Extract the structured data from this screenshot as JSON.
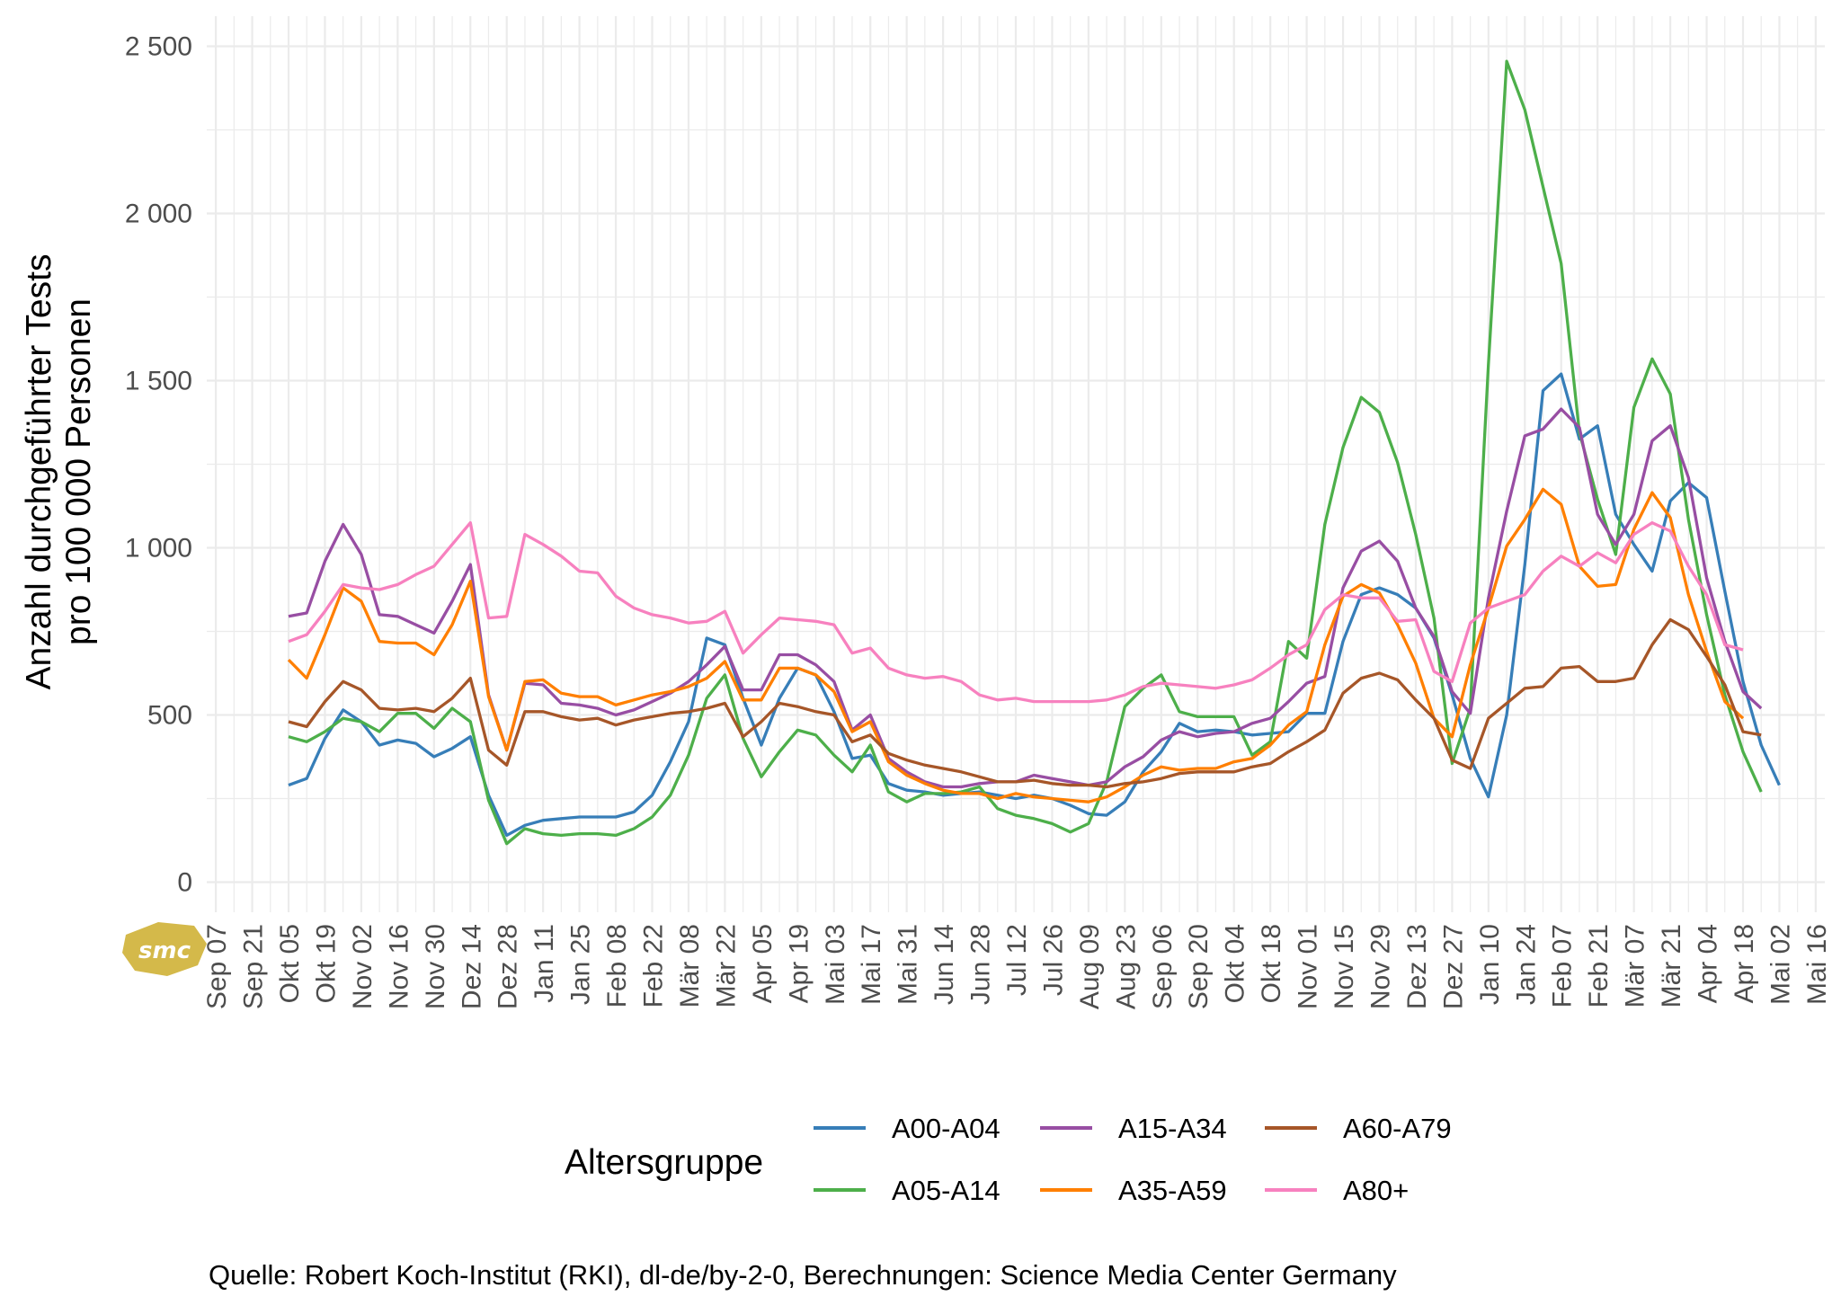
{
  "chart_data": {
    "type": "line",
    "ylabel_lines": [
      "Anzahl durchgeführter Tests",
      "pro 100 000 Personen"
    ],
    "ylim": [
      -90,
      2590
    ],
    "yticks": [
      0,
      500,
      1000,
      1500,
      2000,
      2500
    ],
    "ytick_labels": [
      "0",
      "500",
      "1 000",
      "1 500",
      "2 000",
      "2 500"
    ],
    "x_tick_labels": [
      "Sep 07",
      "Sep 21",
      "Okt 05",
      "Okt 19",
      "Nov 02",
      "Nov 16",
      "Nov 30",
      "Dez 14",
      "Dez 28",
      "Jan 11",
      "Jan 25",
      "Feb 08",
      "Feb 22",
      "Mär 08",
      "Mär 22",
      "Apr 05",
      "Apr 19",
      "Mai 03",
      "Mai 17",
      "Mai 31",
      "Jun 14",
      "Jun 28",
      "Jul 12",
      "Jul 26",
      "Aug 09",
      "Aug 23",
      "Sep 06",
      "Sep 20",
      "Okt 04",
      "Okt 18",
      "Nov 01",
      "Nov 15",
      "Nov 29",
      "Dez 13",
      "Dez 27",
      "Jan 10",
      "Jan 24",
      "Feb 07",
      "Feb 21",
      "Mär 07",
      "Mär 21",
      "Apr 04",
      "Apr 18",
      "Mai 02",
      "Mai 16"
    ],
    "x_range_weeks": [
      -0.5,
      88.5
    ],
    "x_start_week": 4,
    "legend_title": "Altersgruppe",
    "legend_position": "bottom",
    "grid": true,
    "series": [
      {
        "name": "A00-A04",
        "color": "#377eb8",
        "values": [
          290,
          310,
          430,
          515,
          480,
          410,
          425,
          415,
          375,
          400,
          435,
          260,
          140,
          170,
          185,
          190,
          195,
          195,
          195,
          210,
          260,
          360,
          480,
          730,
          710,
          550,
          410,
          550,
          640,
          620,
          510,
          370,
          380,
          295,
          275,
          270,
          260,
          265,
          270,
          260,
          250,
          260,
          250,
          230,
          205,
          200,
          240,
          330,
          390,
          475,
          450,
          455,
          450,
          440,
          445,
          450,
          505,
          505,
          720,
          860,
          880,
          860,
          820,
          730,
          560,
          370,
          255,
          500,
          950,
          1470,
          1520,
          1325,
          1365,
          1100,
          1010,
          930,
          1140,
          1195,
          1150,
          870,
          600,
          410,
          290
        ]
      },
      {
        "name": "A05-A14",
        "color": "#4daf4a",
        "values": [
          435,
          420,
          450,
          490,
          480,
          450,
          505,
          505,
          460,
          520,
          480,
          245,
          115,
          160,
          145,
          140,
          145,
          145,
          140,
          160,
          195,
          260,
          380,
          550,
          620,
          430,
          315,
          390,
          455,
          440,
          380,
          330,
          410,
          270,
          240,
          265,
          265,
          270,
          285,
          220,
          200,
          190,
          175,
          150,
          175,
          300,
          525,
          580,
          620,
          510,
          495,
          495,
          495,
          380,
          420,
          720,
          670,
          1070,
          1300,
          1450,
          1405,
          1255,
          1040,
          790,
          355,
          520,
          1550,
          2455,
          2310,
          2080,
          1850,
          1345,
          1145,
          980,
          1420,
          1565,
          1460,
          1085,
          800,
          560,
          390,
          270
        ]
      },
      {
        "name": "A15-A34",
        "color": "#984ea3",
        "values": [
          795,
          805,
          960,
          1070,
          980,
          800,
          795,
          770,
          745,
          840,
          950,
          560,
          395,
          595,
          590,
          535,
          530,
          520,
          500,
          515,
          540,
          565,
          600,
          650,
          705,
          575,
          575,
          680,
          680,
          650,
          600,
          455,
          500,
          370,
          330,
          300,
          285,
          285,
          295,
          300,
          300,
          320,
          310,
          300,
          290,
          300,
          345,
          375,
          425,
          450,
          435,
          445,
          450,
          475,
          490,
          540,
          595,
          615,
          880,
          990,
          1020,
          960,
          820,
          735,
          570,
          505,
          850,
          1110,
          1335,
          1355,
          1415,
          1360,
          1100,
          1010,
          1100,
          1320,
          1365,
          1210,
          910,
          720,
          570,
          520
        ]
      },
      {
        "name": "A35-A59",
        "color": "#ff7f00",
        "values": [
          665,
          610,
          740,
          880,
          840,
          720,
          715,
          715,
          680,
          770,
          900,
          555,
          395,
          600,
          605,
          565,
          555,
          555,
          530,
          545,
          560,
          570,
          585,
          610,
          660,
          545,
          545,
          640,
          640,
          620,
          570,
          450,
          480,
          360,
          320,
          295,
          275,
          265,
          265,
          250,
          265,
          255,
          250,
          245,
          240,
          255,
          285,
          320,
          345,
          335,
          340,
          340,
          360,
          370,
          410,
          470,
          510,
          710,
          855,
          890,
          865,
          770,
          655,
          490,
          435,
          650,
          820,
          1005,
          1085,
          1175,
          1130,
          945,
          885,
          890,
          1055,
          1165,
          1090,
          860,
          690,
          540,
          490
        ]
      },
      {
        "name": "A60-A79",
        "color": "#a65628",
        "values": [
          480,
          465,
          540,
          600,
          575,
          520,
          515,
          520,
          510,
          550,
          610,
          395,
          350,
          510,
          510,
          495,
          485,
          490,
          470,
          485,
          495,
          505,
          510,
          520,
          535,
          435,
          480,
          535,
          525,
          510,
          500,
          420,
          440,
          385,
          365,
          350,
          340,
          330,
          315,
          300,
          300,
          305,
          295,
          290,
          290,
          285,
          295,
          300,
          310,
          325,
          330,
          330,
          330,
          345,
          355,
          390,
          420,
          455,
          565,
          610,
          625,
          605,
          545,
          490,
          365,
          340,
          490,
          535,
          580,
          585,
          640,
          645,
          600,
          600,
          610,
          710,
          785,
          755,
          675,
          590,
          450,
          440
        ]
      },
      {
        "name": "A80+",
        "color": "#f781bf",
        "values": [
          720,
          740,
          810,
          890,
          880,
          875,
          890,
          920,
          945,
          1010,
          1075,
          790,
          795,
          1040,
          1010,
          975,
          930,
          925,
          855,
          820,
          800,
          790,
          775,
          780,
          810,
          685,
          740,
          790,
          785,
          780,
          770,
          685,
          700,
          640,
          620,
          610,
          615,
          600,
          560,
          545,
          550,
          540,
          540,
          540,
          540,
          545,
          560,
          585,
          595,
          590,
          585,
          580,
          590,
          605,
          640,
          680,
          710,
          815,
          860,
          850,
          850,
          780,
          785,
          630,
          600,
          775,
          820,
          840,
          860,
          930,
          975,
          945,
          985,
          955,
          1040,
          1075,
          1050,
          945,
          860,
          710,
          695
        ]
      }
    ]
  },
  "legend": {
    "title": "Altersgruppe",
    "items": [
      "A00-A04",
      "A15-A34",
      "A60-A79",
      "A05-A14",
      "A35-A59",
      "A80+"
    ]
  },
  "caption": "Quelle: Robert Koch-Institut (RKI), dl-de/by-2-0, Berechnungen: Science Media Center Germany",
  "logo": {
    "text": "smc",
    "color": "#d4b94a"
  }
}
